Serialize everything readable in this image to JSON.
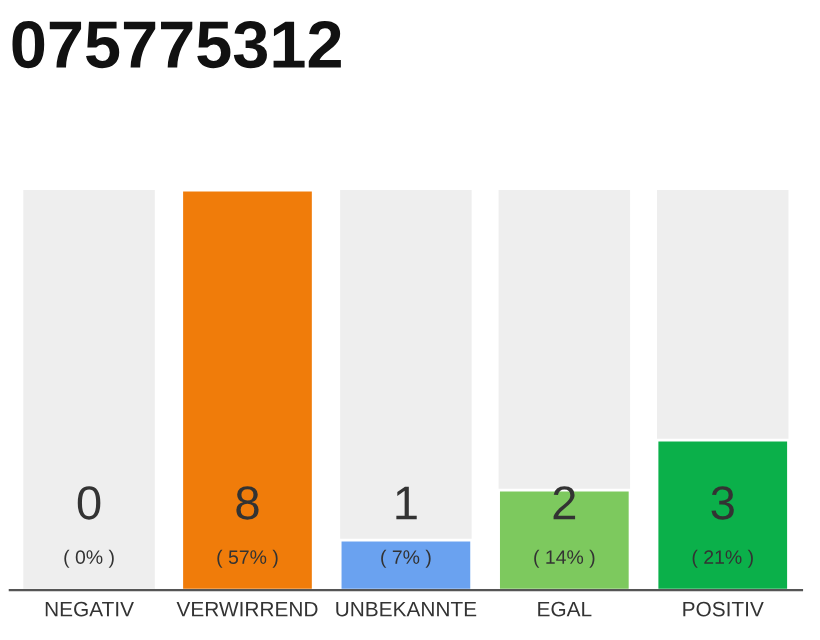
{
  "chart_data": {
    "type": "bar",
    "title": "075775312",
    "categories": [
      "NEGATIV",
      "VERWIRREND",
      "UNBEKANNTE",
      "EGAL",
      "POSITIV"
    ],
    "values": [
      0,
      8,
      1,
      2,
      3
    ],
    "colors": [
      null,
      "#f07c0a",
      "#6aa2f0",
      "#7dc95e",
      "#0bb04a"
    ],
    "value_labels": [
      "0\n( 0% )",
      "8\n( 57% )",
      "1\n( 7% )",
      "2\n( 14% )",
      "3\n( 21% )"
    ],
    "grid": false,
    "legend": false
  }
}
